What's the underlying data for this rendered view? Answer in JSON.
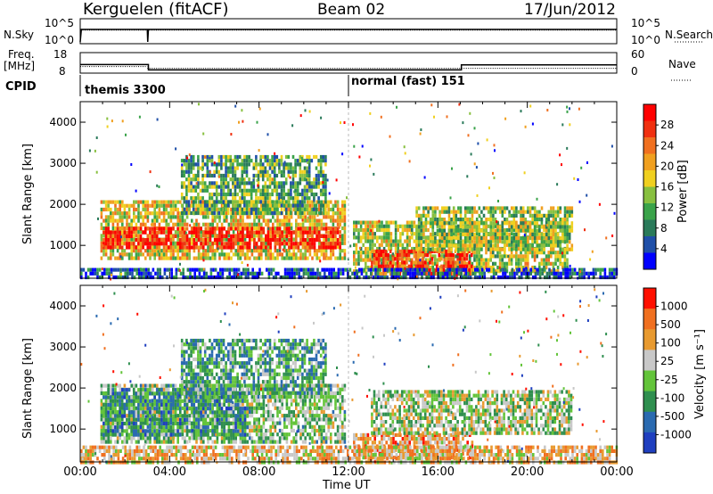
{
  "header": {
    "station": "Kerguelen (fitACF)",
    "beam": "Beam 02",
    "date": "17/Jun/2012"
  },
  "nsky_panel": {
    "left_label": "N.Sky",
    "right_label": "N.Search",
    "left_ticks": [
      "10^5",
      "10^0"
    ],
    "right_ticks": [
      "10^5",
      "10^0"
    ]
  },
  "freq_panel": {
    "left_label_1": "Freq.",
    "left_label_2": "[MHz]",
    "left_ticks": [
      "18",
      "8"
    ],
    "right_ticks": [
      "60",
      "0"
    ],
    "right_label": "Nave",
    "freq_steps": [
      [
        0.0,
        12.2
      ],
      [
        3.05,
        9.6
      ],
      [
        17.05,
        12.0
      ],
      [
        24.0,
        12.0
      ]
    ],
    "nave_level": 14
  },
  "cpid": {
    "label": "CPID",
    "modes": [
      {
        "name": "themis 3300",
        "start_hour": 0
      },
      {
        "name": "normal (fast) 151",
        "start_hour": 12
      }
    ]
  },
  "chart_data": [
    {
      "type": "heatmap",
      "name": "power",
      "ylabel": "Slant Range [km]",
      "ylim": [
        200,
        4500
      ],
      "yticks": [
        1000,
        2000,
        3000,
        4000
      ],
      "colorbar_label": "Power [dB]",
      "colorbar_ticks": [
        "28",
        "24",
        "20",
        "16",
        "12",
        "8",
        "4"
      ],
      "colors": [
        "#0000ff",
        "#1f4fa8",
        "#2a7a5a",
        "#3aa34a",
        "#88c040",
        "#f0d020",
        "#f0a020",
        "#f07020",
        "#f03010",
        "#ff0000"
      ],
      "regions": [
        {
          "h0": 0.9,
          "h1": 11.8,
          "r0": 700,
          "r1": 2100,
          "level": 0.55
        },
        {
          "h0": 1.0,
          "h1": 11.6,
          "r0": 950,
          "r1": 1450,
          "level": 0.9
        },
        {
          "h0": 4.5,
          "h1": 11.0,
          "r0": 1800,
          "r1": 3200,
          "level": 0.35
        },
        {
          "h0": 12.2,
          "h1": 21.8,
          "r0": 400,
          "r1": 1600,
          "level": 0.5
        },
        {
          "h0": 13.0,
          "h1": 17.5,
          "r0": 350,
          "r1": 900,
          "level": 0.85
        },
        {
          "h0": 15.0,
          "h1": 22.0,
          "r0": 900,
          "r1": 1950,
          "level": 0.45
        },
        {
          "h0": 0.0,
          "h1": 24.0,
          "r0": 200,
          "r1": 450,
          "level": 0.15
        }
      ]
    },
    {
      "type": "heatmap",
      "name": "velocity",
      "ylabel": "Slant Range [km]",
      "ylim": [
        200,
        4500
      ],
      "yticks": [
        1000,
        2000,
        3000,
        4000
      ],
      "colorbar_label": "Velocity [m s⁻¹]",
      "colorbar_ticks": [
        "1000",
        "500",
        "100",
        "25",
        "-25",
        "-100",
        "-500",
        "-1000"
      ],
      "colors": [
        "#1f3fbf",
        "#2a6ab0",
        "#2f8f4f",
        "#63c43a",
        "#c8c8c8",
        "#e89a30",
        "#f07020",
        "#ff1000"
      ],
      "regions": [
        {
          "h0": 0.9,
          "h1": 11.8,
          "r0": 700,
          "r1": 2100,
          "level": 0.45
        },
        {
          "h0": 1.0,
          "h1": 7.5,
          "r0": 900,
          "r1": 2000,
          "level": 0.3
        },
        {
          "h0": 4.5,
          "h1": 11.0,
          "r0": 1800,
          "r1": 3200,
          "level": 0.35
        },
        {
          "h0": 12.2,
          "h1": 17.5,
          "r0": 350,
          "r1": 900,
          "level": 0.7
        },
        {
          "h0": 13.0,
          "h1": 22.0,
          "r0": 900,
          "r1": 1950,
          "level": 0.5
        },
        {
          "h0": 0.0,
          "h1": 24.0,
          "r0": 200,
          "r1": 600,
          "level": 0.65
        }
      ]
    }
  ],
  "x_axis": {
    "ticks": [
      "00:00",
      "04:00",
      "08:00",
      "12:00",
      "16:00",
      "20:00",
      "00:00"
    ],
    "label": "Time UT"
  }
}
